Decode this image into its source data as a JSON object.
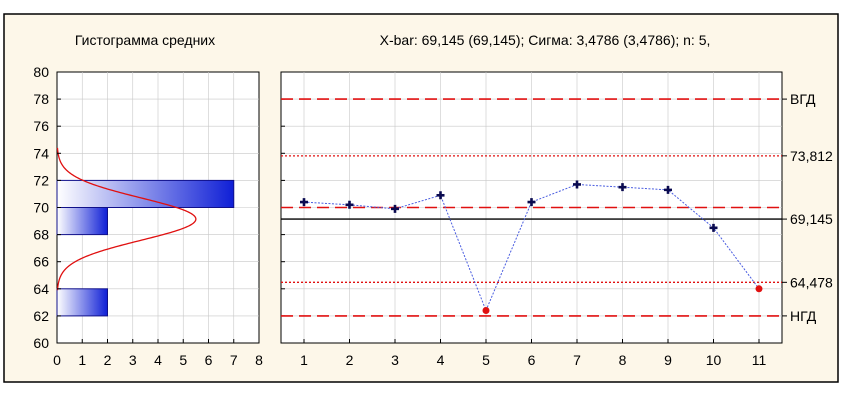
{
  "colors": {
    "panel_bg": "#fdf7e9",
    "plot_bg": "#ffffff",
    "frame": "#000000",
    "limit_red": "#e01010",
    "center_line": "#000000",
    "line_blue": "#4a5de0",
    "marker_navy": "#0a0a50",
    "out_point": "#e01010",
    "bar_dark": "#0f1fd6",
    "bar_light": "#ffffff",
    "curve": "#e01010",
    "grid": "#c8c8c8"
  },
  "chart_data": [
    {
      "type": "bar",
      "orientation": "horizontal",
      "title": "Гистограмма средних",
      "bins": [
        {
          "from": 62,
          "to": 64,
          "count": 2
        },
        {
          "from": 64,
          "to": 66,
          "count": 0
        },
        {
          "from": 66,
          "to": 68,
          "count": 0
        },
        {
          "from": 68,
          "to": 70,
          "count": 2
        },
        {
          "from": 70,
          "to": 72,
          "count": 7
        },
        {
          "from": 72,
          "to": 74,
          "count": 0
        }
      ],
      "normal_curve": {
        "mean": 69.145,
        "sigma": 1.56,
        "peak_count": 5.5
      },
      "xlim": [
        0,
        8
      ],
      "x_ticks": [
        "0",
        "1",
        "2",
        "3",
        "4",
        "5",
        "6",
        "7",
        "8"
      ],
      "ylim": [
        60,
        80
      ],
      "y_ticks": [
        "60",
        "62",
        "64",
        "66",
        "68",
        "70",
        "72",
        "74",
        "76",
        "78",
        "80"
      ],
      "grid": true
    },
    {
      "type": "line",
      "title": "X-bar: 69,145 (69,145); Сигма: 3,4786 (3,4786); n: 5,",
      "x": [
        1,
        2,
        3,
        4,
        5,
        6,
        7,
        8,
        9,
        10,
        11
      ],
      "x_ticks": [
        "1",
        "2",
        "3",
        "4",
        "5",
        "6",
        "7",
        "8",
        "9",
        "10",
        "11"
      ],
      "values": [
        70.4,
        70.2,
        69.9,
        70.9,
        62.4,
        70.4,
        71.7,
        71.5,
        71.3,
        68.5,
        64.0
      ],
      "out_of_control": [
        5,
        11
      ],
      "ylim": [
        60,
        80
      ],
      "grid": true,
      "lines": [
        {
          "key": "ucl",
          "value": 78.0,
          "label": "ВГД",
          "style": "long-dash"
        },
        {
          "key": "usl",
          "value": 73.812,
          "label": "73,812",
          "style": "dotted"
        },
        {
          "key": "mid",
          "value": 70.0,
          "label": "",
          "style": "long-dash"
        },
        {
          "key": "center",
          "value": 69.145,
          "label": "69,145",
          "style": "solid"
        },
        {
          "key": "lsl",
          "value": 64.478,
          "label": "64,478",
          "style": "dotted"
        },
        {
          "key": "lcl",
          "value": 62.0,
          "label": "НГД",
          "style": "long-dash"
        }
      ]
    }
  ]
}
